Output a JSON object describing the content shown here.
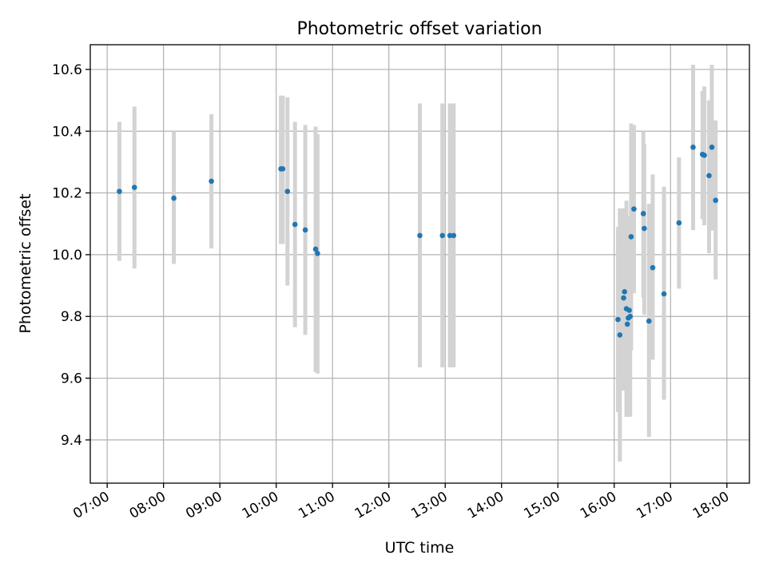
{
  "chart_data": {
    "type": "scatter",
    "title": "Photometric offset variation",
    "xlabel": "UTC time",
    "ylabel": "Photometric offset",
    "xlim": [
      "06:42",
      "18:24"
    ],
    "ylim": [
      9.26,
      10.68
    ],
    "x_ticks": [
      "07:00",
      "08:00",
      "09:00",
      "10:00",
      "11:00",
      "12:00",
      "13:00",
      "14:00",
      "15:00",
      "16:00",
      "17:00",
      "18:00"
    ],
    "y_ticks": [
      "9.4",
      "9.6",
      "9.8",
      "10.0",
      "10.2",
      "10.4",
      "10.6"
    ],
    "grid": true,
    "colors": {
      "point": "#1f77b4",
      "errorbar": "#d3d3d3"
    },
    "points": [
      {
        "x": "07:13",
        "y": 10.205,
        "ylow": 9.98,
        "yhigh": 10.43
      },
      {
        "x": "07:29",
        "y": 10.218,
        "ylow": 9.955,
        "yhigh": 10.48
      },
      {
        "x": "08:11",
        "y": 10.183,
        "ylow": 9.97,
        "yhigh": 10.4
      },
      {
        "x": "08:51",
        "y": 10.238,
        "ylow": 10.02,
        "yhigh": 10.455
      },
      {
        "x": "10:05",
        "y": 10.278,
        "ylow": 10.035,
        "yhigh": 10.515
      },
      {
        "x": "10:07",
        "y": 10.278,
        "ylow": 10.035,
        "yhigh": 10.515
      },
      {
        "x": "10:12",
        "y": 10.205,
        "ylow": 9.9,
        "yhigh": 10.51
      },
      {
        "x": "10:20",
        "y": 10.098,
        "ylow": 9.765,
        "yhigh": 10.43
      },
      {
        "x": "10:31",
        "y": 10.08,
        "ylow": 9.74,
        "yhigh": 10.42
      },
      {
        "x": "10:42",
        "y": 10.018,
        "ylow": 9.62,
        "yhigh": 10.415
      },
      {
        "x": "10:44",
        "y": 10.004,
        "ylow": 9.615,
        "yhigh": 10.39
      },
      {
        "x": "12:33",
        "y": 10.062,
        "ylow": 9.635,
        "yhigh": 10.49
      },
      {
        "x": "12:57",
        "y": 10.062,
        "ylow": 9.635,
        "yhigh": 10.49
      },
      {
        "x": "13:05",
        "y": 10.062,
        "ylow": 9.635,
        "yhigh": 10.49
      },
      {
        "x": "13:09",
        "y": 10.062,
        "ylow": 9.635,
        "yhigh": 10.49
      },
      {
        "x": "16:04",
        "y": 9.79,
        "ylow": 9.49,
        "yhigh": 10.09
      },
      {
        "x": "16:06",
        "y": 9.74,
        "ylow": 9.33,
        "yhigh": 10.15
      },
      {
        "x": "16:10",
        "y": 9.86,
        "ylow": 9.56,
        "yhigh": 10.15
      },
      {
        "x": "16:11",
        "y": 9.88,
        "ylow": 9.64,
        "yhigh": 10.12
      },
      {
        "x": "16:13",
        "y": 9.825,
        "ylow": 9.475,
        "yhigh": 10.175
      },
      {
        "x": "16:14",
        "y": 9.775,
        "ylow": 9.475,
        "yhigh": 10.075
      },
      {
        "x": "16:15",
        "y": 9.795,
        "ylow": 9.52,
        "yhigh": 10.07
      },
      {
        "x": "16:16",
        "y": 9.82,
        "ylow": 9.52,
        "yhigh": 10.12
      },
      {
        "x": "16:17",
        "y": 9.8,
        "ylow": 9.475,
        "yhigh": 10.125
      },
      {
        "x": "16:18",
        "y": 10.058,
        "ylow": 9.69,
        "yhigh": 10.425
      },
      {
        "x": "16:21",
        "y": 10.148,
        "ylow": 9.875,
        "yhigh": 10.42
      },
      {
        "x": "16:31",
        "y": 10.133,
        "ylow": 9.86,
        "yhigh": 10.4
      },
      {
        "x": "16:32",
        "y": 10.085,
        "ylow": 9.805,
        "yhigh": 10.36
      },
      {
        "x": "16:37",
        "y": 9.785,
        "ylow": 9.41,
        "yhigh": 10.165
      },
      {
        "x": "16:41",
        "y": 9.958,
        "ylow": 9.66,
        "yhigh": 10.26
      },
      {
        "x": "16:53",
        "y": 9.873,
        "ylow": 9.53,
        "yhigh": 10.22
      },
      {
        "x": "17:09",
        "y": 10.103,
        "ylow": 9.89,
        "yhigh": 10.315
      },
      {
        "x": "17:24",
        "y": 10.348,
        "ylow": 10.08,
        "yhigh": 10.615
      },
      {
        "x": "17:34",
        "y": 10.325,
        "ylow": 10.115,
        "yhigh": 10.53
      },
      {
        "x": "17:36",
        "y": 10.322,
        "ylow": 10.095,
        "yhigh": 10.545
      },
      {
        "x": "17:41",
        "y": 10.256,
        "ylow": 10.005,
        "yhigh": 10.5
      },
      {
        "x": "17:44",
        "y": 10.348,
        "ylow": 10.078,
        "yhigh": 10.615
      },
      {
        "x": "17:48",
        "y": 10.176,
        "ylow": 9.92,
        "yhigh": 10.435
      }
    ]
  }
}
